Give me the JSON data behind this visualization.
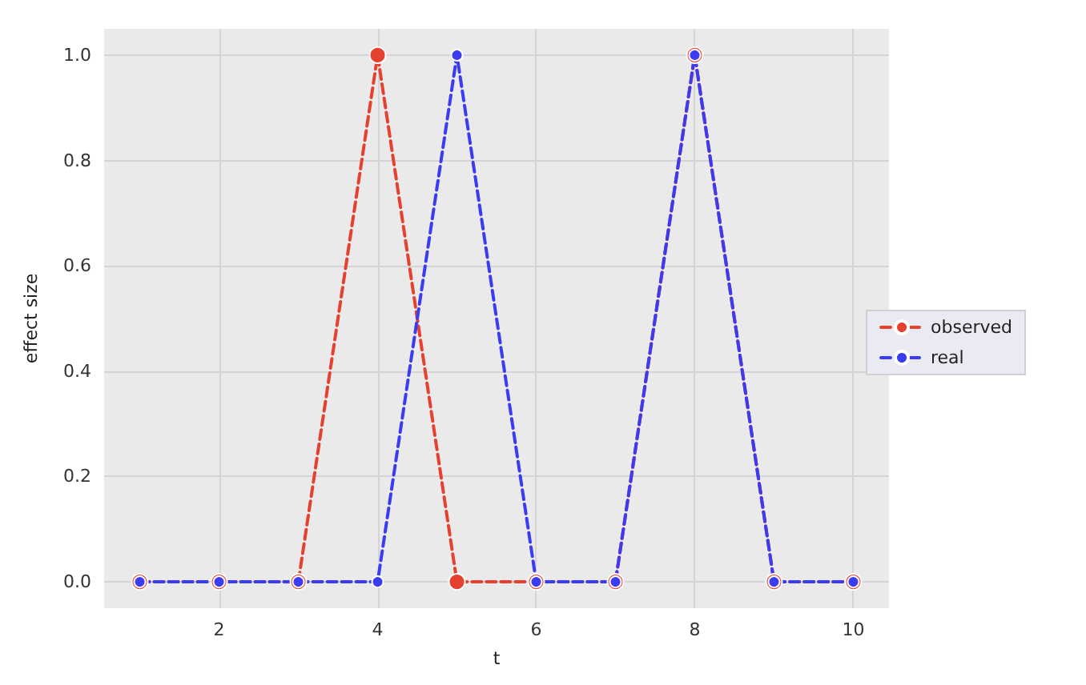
{
  "chart_data": {
    "type": "line",
    "xlabel": "t",
    "ylabel": "effect size",
    "x": [
      1,
      2,
      3,
      4,
      5,
      6,
      7,
      8,
      9,
      10
    ],
    "series": [
      {
        "name": "observed",
        "color": "#e5412f",
        "line_style": "dashed",
        "values": [
          0,
          0,
          0,
          1,
          0,
          0,
          0,
          1,
          0,
          0
        ]
      },
      {
        "name": "real",
        "color": "#3b3bf2",
        "line_style": "dashed",
        "values": [
          0,
          0,
          0,
          0,
          1,
          0,
          0,
          1,
          0,
          0
        ]
      }
    ],
    "xlim": [
      0.55,
      10.45
    ],
    "xticks": [
      2,
      4,
      6,
      8,
      10
    ],
    "ylim": [
      -0.05,
      1.05
    ],
    "yticks": [
      {
        "value": 0,
        "label": "0.0"
      },
      {
        "value": 0.2,
        "label": "0.2"
      },
      {
        "value": 0.4,
        "label": "0.4"
      },
      {
        "value": 0.6,
        "label": "0.6"
      },
      {
        "value": 0.8,
        "label": "0.8"
      },
      {
        "value": 1,
        "label": "1.0"
      }
    ],
    "grid": true,
    "legend": "right",
    "marker": "circle"
  }
}
